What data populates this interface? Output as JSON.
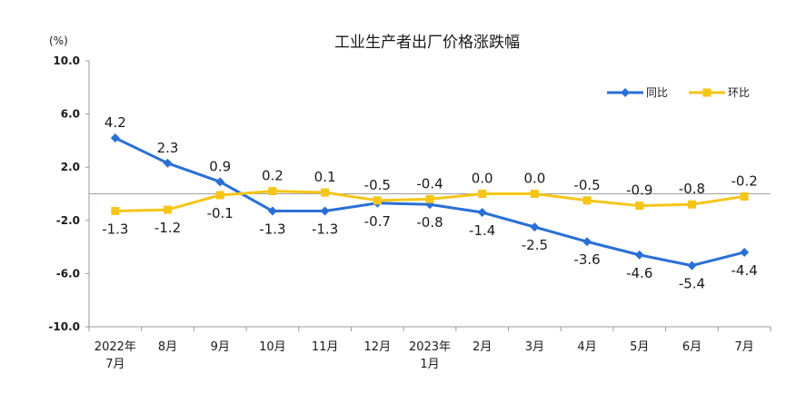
{
  "chart_data": {
    "type": "line",
    "title": "工业生产者出厂价格涨跌幅",
    "unit_label": "(%)",
    "ylim": [
      -10,
      10
    ],
    "yticks": [
      "10.0",
      "6.0",
      "2.0",
      "-2.0",
      "-6.0",
      "-10.0"
    ],
    "ytick_values": [
      10,
      6,
      2,
      -2,
      -6,
      -10
    ],
    "categories": [
      [
        "2022年",
        "7月"
      ],
      [
        "8月"
      ],
      [
        "9月"
      ],
      [
        "10月"
      ],
      [
        "11月"
      ],
      [
        "12月"
      ],
      [
        "2023年",
        "1月"
      ],
      [
        "2月"
      ],
      [
        "3月"
      ],
      [
        "4月"
      ],
      [
        "5月"
      ],
      [
        "6月"
      ],
      [
        "7月"
      ]
    ],
    "series": [
      {
        "name": "同比",
        "color": "#2a6fd6",
        "marker": "diamond",
        "values": [
          4.2,
          2.3,
          0.9,
          -1.3,
          -1.3,
          -0.7,
          -0.8,
          -1.4,
          -2.5,
          -3.6,
          -4.6,
          -5.4,
          -4.4
        ],
        "labels": [
          "4.2",
          "2.3",
          "0.9",
          "-1.3",
          "-1.3",
          "-0.7",
          "-0.8",
          "-1.4",
          "-2.5",
          "-3.6",
          "-4.6",
          "-5.4",
          "-4.4"
        ]
      },
      {
        "name": "环比",
        "color": "#f5c518",
        "marker": "square",
        "values": [
          -1.3,
          -1.2,
          -0.1,
          0.2,
          0.1,
          -0.5,
          -0.4,
          0.0,
          0.0,
          -0.5,
          -0.9,
          -0.8,
          -0.2
        ],
        "labels": [
          "-1.3",
          "-1.2",
          "-0.1",
          "0.2",
          "0.1",
          "-0.5",
          "-0.4",
          "0.0",
          "0.0",
          "-0.5",
          "-0.9",
          "-0.8",
          "-0.2"
        ]
      }
    ],
    "legend_position": "top-right",
    "grid": false,
    "zero_line": true
  }
}
